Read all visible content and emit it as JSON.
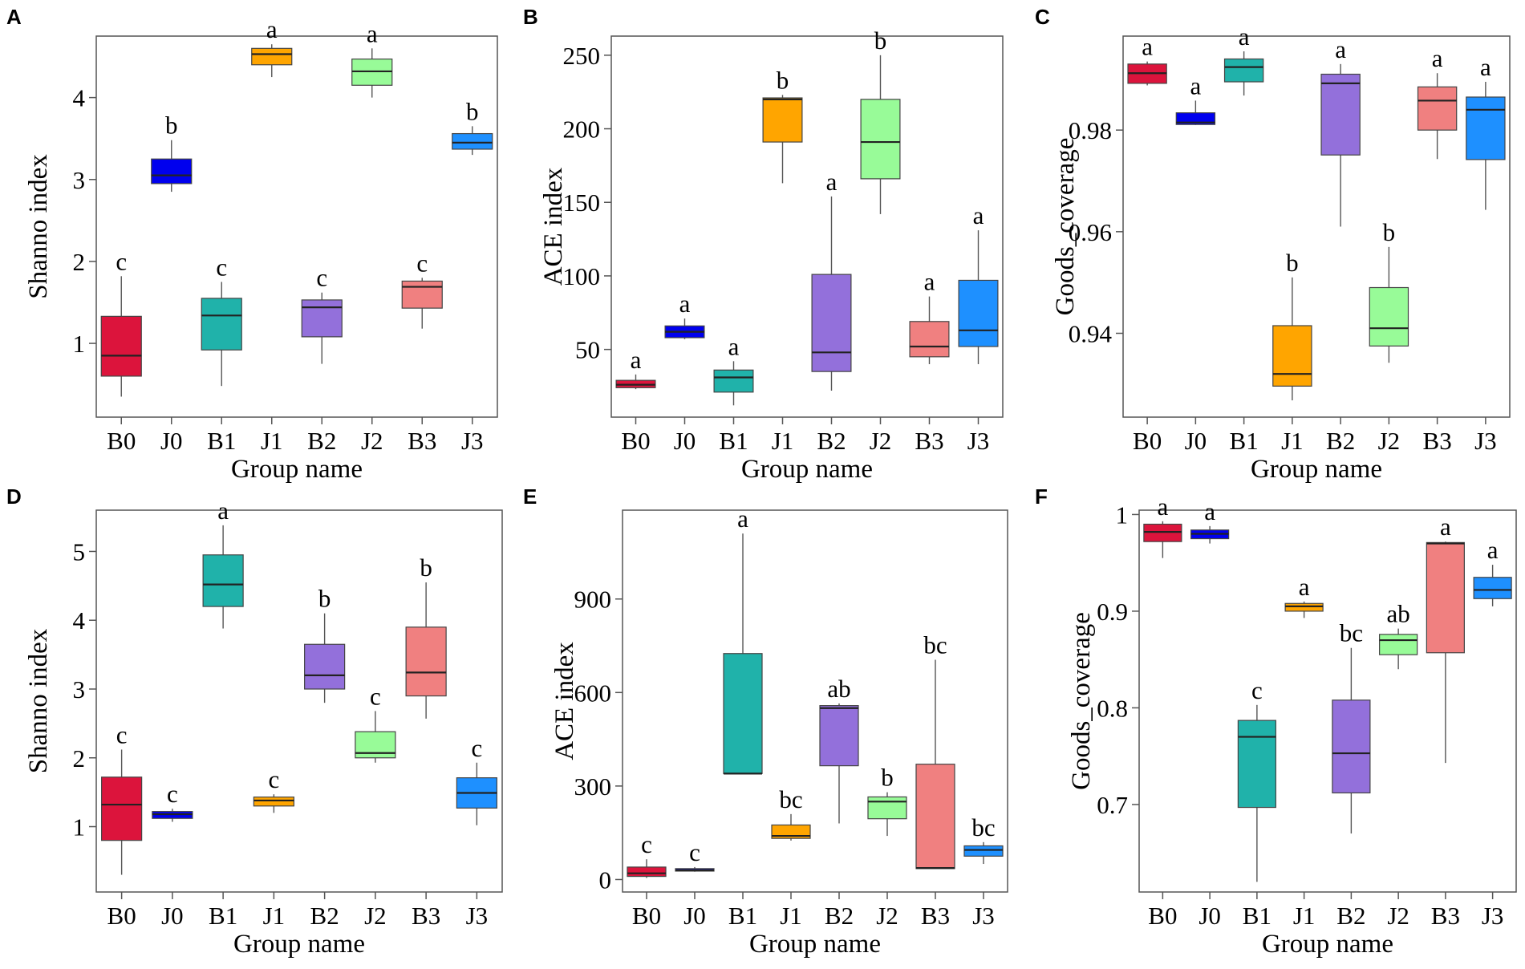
{
  "figure": {
    "colors": {
      "B0": "#dc143c",
      "J0": "#0000ee",
      "B1": "#20b2aa",
      "J1": "#ffa500",
      "B2": "#9370db",
      "J2": "#98fb98",
      "B3": "#f08080",
      "J3": "#1e90ff"
    }
  },
  "chart_data": [
    {
      "panel": "A",
      "type": "boxplot",
      "xlabel": "Group name",
      "ylabel": "Shanno index",
      "ylim": [
        0.1,
        4.75
      ],
      "yticks": [
        "1",
        "2",
        "3",
        "4"
      ],
      "categories": [
        "B0",
        "J0",
        "B1",
        "J1",
        "B2",
        "J2",
        "B3",
        "J3"
      ],
      "boxes": [
        {
          "group": "B0",
          "min": 0.35,
          "q1": 0.6,
          "median": 0.85,
          "q3": 1.33,
          "max": 1.82,
          "label": "c"
        },
        {
          "group": "J0",
          "min": 2.85,
          "q1": 2.95,
          "median": 3.05,
          "q3": 3.25,
          "max": 3.48,
          "label": "b"
        },
        {
          "group": "B1",
          "min": 0.48,
          "q1": 0.92,
          "median": 1.34,
          "q3": 1.55,
          "max": 1.75,
          "label": "c"
        },
        {
          "group": "J1",
          "min": 4.25,
          "q1": 4.4,
          "median": 4.53,
          "q3": 4.6,
          "max": 4.65,
          "label": "a"
        },
        {
          "group": "B2",
          "min": 0.75,
          "q1": 1.08,
          "median": 1.44,
          "q3": 1.53,
          "max": 1.62,
          "label": "c"
        },
        {
          "group": "J2",
          "min": 4.0,
          "q1": 4.15,
          "median": 4.32,
          "q3": 4.47,
          "max": 4.6,
          "label": "a"
        },
        {
          "group": "B3",
          "min": 1.18,
          "q1": 1.43,
          "median": 1.69,
          "q3": 1.76,
          "max": 1.8,
          "label": "c"
        },
        {
          "group": "J3",
          "min": 3.3,
          "q1": 3.37,
          "median": 3.45,
          "q3": 3.56,
          "max": 3.65,
          "label": "b"
        }
      ]
    },
    {
      "panel": "B",
      "type": "boxplot",
      "xlabel": "Group name",
      "ylabel": "ACE index",
      "ylim": [
        4,
        263
      ],
      "yticks": [
        "50",
        "100",
        "150",
        "200",
        "250"
      ],
      "categories": [
        "B0",
        "J0",
        "B1",
        "J1",
        "B2",
        "J2",
        "B3",
        "J3"
      ],
      "boxes": [
        {
          "group": "B0",
          "min": 23,
          "q1": 24,
          "median": 26,
          "q3": 29,
          "max": 33,
          "label": "a"
        },
        {
          "group": "J0",
          "min": 57,
          "q1": 58,
          "median": 62,
          "q3": 66,
          "max": 71,
          "label": "a"
        },
        {
          "group": "B1",
          "min": 12,
          "q1": 21,
          "median": 31,
          "q3": 36,
          "max": 42,
          "label": "a"
        },
        {
          "group": "J1",
          "min": 163,
          "q1": 191,
          "median": 220,
          "q3": 221,
          "max": 223,
          "label": "b"
        },
        {
          "group": "B2",
          "min": 22,
          "q1": 35,
          "median": 48,
          "q3": 101,
          "max": 154,
          "label": "a"
        },
        {
          "group": "J2",
          "min": 142,
          "q1": 166,
          "median": 191,
          "q3": 220,
          "max": 250,
          "label": "b"
        },
        {
          "group": "B3",
          "min": 40,
          "q1": 45,
          "median": 52,
          "q3": 69,
          "max": 86,
          "label": "a"
        },
        {
          "group": "J3",
          "min": 40,
          "q1": 52,
          "median": 63,
          "q3": 97,
          "max": 131,
          "label": "a"
        }
      ]
    },
    {
      "panel": "C",
      "type": "boxplot",
      "xlabel": "Group name",
      "ylabel": "Goods_coverage",
      "ylim": [
        0.9235,
        0.9985
      ],
      "yticks": [
        "0.94",
        "0.96",
        "0.98"
      ],
      "categories": [
        "B0",
        "J0",
        "B1",
        "J1",
        "B2",
        "J2",
        "B3",
        "J3"
      ],
      "boxes": [
        {
          "group": "B0",
          "min": 0.9888,
          "q1": 0.9892,
          "median": 0.9912,
          "q3": 0.993,
          "max": 0.9935,
          "label": "a"
        },
        {
          "group": "J0",
          "min": 0.981,
          "q1": 0.9811,
          "median": 0.9815,
          "q3": 0.9834,
          "max": 0.9858,
          "label": "a"
        },
        {
          "group": "B1",
          "min": 0.9868,
          "q1": 0.9895,
          "median": 0.9924,
          "q3": 0.994,
          "max": 0.9955,
          "label": "a"
        },
        {
          "group": "J1",
          "min": 0.9268,
          "q1": 0.9296,
          "median": 0.932,
          "q3": 0.9415,
          "max": 0.951,
          "label": "b"
        },
        {
          "group": "B2",
          "min": 0.961,
          "q1": 0.9751,
          "median": 0.9892,
          "q3": 0.991,
          "max": 0.993,
          "label": "a"
        },
        {
          "group": "J2",
          "min": 0.9342,
          "q1": 0.9375,
          "median": 0.941,
          "q3": 0.949,
          "max": 0.957,
          "label": "b"
        },
        {
          "group": "B3",
          "min": 0.9743,
          "q1": 0.98,
          "median": 0.9858,
          "q3": 0.9885,
          "max": 0.9912,
          "label": "a"
        },
        {
          "group": "J3",
          "min": 0.9643,
          "q1": 0.9742,
          "median": 0.984,
          "q3": 0.9865,
          "max": 0.9895,
          "label": "a"
        }
      ]
    },
    {
      "panel": "D",
      "type": "boxplot",
      "xlabel": "Group name",
      "ylabel": "Shanno index",
      "ylim": [
        0.05,
        5.6
      ],
      "yticks": [
        "1",
        "2",
        "3",
        "4",
        "5"
      ],
      "categories": [
        "B0",
        "J0",
        "B1",
        "J1",
        "B2",
        "J2",
        "B3",
        "J3"
      ],
      "boxes": [
        {
          "group": "B0",
          "min": 0.3,
          "q1": 0.8,
          "median": 1.32,
          "q3": 1.72,
          "max": 2.12,
          "label": "c"
        },
        {
          "group": "J0",
          "min": 1.07,
          "q1": 1.12,
          "median": 1.18,
          "q3": 1.22,
          "max": 1.26,
          "label": "c"
        },
        {
          "group": "B1",
          "min": 3.88,
          "q1": 4.2,
          "median": 4.52,
          "q3": 4.95,
          "max": 5.38,
          "label": "a"
        },
        {
          "group": "J1",
          "min": 1.2,
          "q1": 1.3,
          "median": 1.38,
          "q3": 1.43,
          "max": 1.47,
          "label": "c"
        },
        {
          "group": "B2",
          "min": 2.8,
          "q1": 3.0,
          "median": 3.2,
          "q3": 3.65,
          "max": 4.1,
          "label": "b"
        },
        {
          "group": "J2",
          "min": 1.93,
          "q1": 2.0,
          "median": 2.07,
          "q3": 2.38,
          "max": 2.68,
          "label": "c"
        },
        {
          "group": "B3",
          "min": 2.57,
          "q1": 2.9,
          "median": 3.24,
          "q3": 3.9,
          "max": 4.55,
          "label": "b"
        },
        {
          "group": "J3",
          "min": 1.02,
          "q1": 1.27,
          "median": 1.49,
          "q3": 1.71,
          "max": 1.93,
          "label": "c"
        }
      ]
    },
    {
      "panel": "E",
      "type": "boxplot",
      "xlabel": "Group name",
      "ylabel": "ACE index",
      "ylim": [
        -40,
        1185
      ],
      "yticks": [
        "0",
        "300",
        "600",
        "900"
      ],
      "categories": [
        "B0",
        "J0",
        "B1",
        "J1",
        "B2",
        "J2",
        "B3",
        "J3"
      ],
      "boxes": [
        {
          "group": "B0",
          "min": 5,
          "q1": 10,
          "median": 20,
          "q3": 40,
          "max": 65,
          "label": "c"
        },
        {
          "group": "J0",
          "min": 25,
          "q1": 27,
          "median": 30,
          "q3": 35,
          "max": 40,
          "label": "c"
        },
        {
          "group": "B1",
          "min": 340,
          "q1": 340,
          "median": 340,
          "q3": 725,
          "max": 1110,
          "label": "a"
        },
        {
          "group": "J1",
          "min": 125,
          "q1": 132,
          "median": 140,
          "q3": 175,
          "max": 210,
          "label": "bc"
        },
        {
          "group": "B2",
          "min": 180,
          "q1": 365,
          "median": 550,
          "q3": 558,
          "max": 565,
          "label": "ab"
        },
        {
          "group": "J2",
          "min": 140,
          "q1": 195,
          "median": 250,
          "q3": 265,
          "max": 280,
          "label": "b"
        },
        {
          "group": "B3",
          "min": 35,
          "q1": 35,
          "median": 37,
          "q3": 370,
          "max": 705,
          "label": "bc"
        },
        {
          "group": "J3",
          "min": 50,
          "q1": 75,
          "median": 95,
          "q3": 108,
          "max": 120,
          "label": "bc"
        }
      ]
    },
    {
      "panel": "F",
      "type": "boxplot",
      "xlabel": "Group name",
      "ylabel": "Goods_coverage",
      "ylim": [
        0.6095,
        1.0045
      ],
      "yticks": [
        "0.7",
        "0.8",
        "0.9",
        "1"
      ],
      "categories": [
        "B0",
        "J0",
        "B1",
        "J1",
        "B2",
        "J2",
        "B3",
        "J3"
      ],
      "boxes": [
        {
          "group": "B0",
          "min": 0.955,
          "q1": 0.972,
          "median": 0.982,
          "q3": 0.99,
          "max": 0.993,
          "label": "a"
        },
        {
          "group": "J0",
          "min": 0.97,
          "q1": 0.975,
          "median": 0.98,
          "q3": 0.984,
          "max": 0.988,
          "label": "a"
        },
        {
          "group": "B1",
          "min": 0.62,
          "q1": 0.697,
          "median": 0.77,
          "q3": 0.787,
          "max": 0.803,
          "label": "c"
        },
        {
          "group": "J1",
          "min": 0.893,
          "q1": 0.9,
          "median": 0.905,
          "q3": 0.908,
          "max": 0.91,
          "label": "a"
        },
        {
          "group": "B2",
          "min": 0.67,
          "q1": 0.712,
          "median": 0.753,
          "q3": 0.808,
          "max": 0.862,
          "label": "bc"
        },
        {
          "group": "J2",
          "min": 0.84,
          "q1": 0.855,
          "median": 0.87,
          "q3": 0.876,
          "max": 0.882,
          "label": "ab"
        },
        {
          "group": "B3",
          "min": 0.743,
          "q1": 0.857,
          "median": 0.97,
          "q3": 0.971,
          "max": 0.972,
          "label": "a"
        },
        {
          "group": "J3",
          "min": 0.905,
          "q1": 0.913,
          "median": 0.922,
          "q3": 0.935,
          "max": 0.948,
          "label": "a"
        }
      ]
    }
  ]
}
